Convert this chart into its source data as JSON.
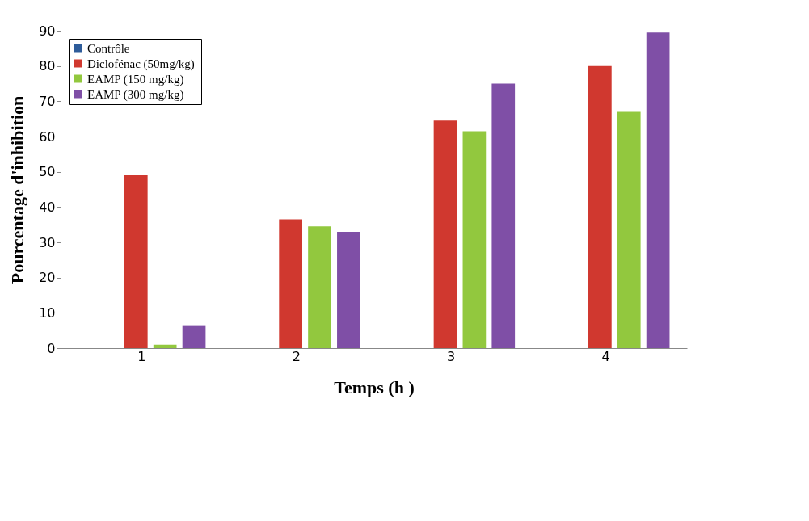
{
  "chart_data": {
    "type": "bar",
    "xlabel": "Temps (h )",
    "ylabel": "Pourcentage d'inhibition",
    "categories": [
      "1",
      "2",
      "3",
      "4"
    ],
    "series": [
      {
        "name": "Contrôle",
        "color": "#2e5c9a",
        "values": [
          0,
          0,
          0,
          0
        ]
      },
      {
        "name": "Diclofénac  (50mg/kg)",
        "color": "#d0382f",
        "values": [
          49,
          36.5,
          64.5,
          80
        ]
      },
      {
        "name": " EAMP (150 mg/kg)",
        "color": "#92c83e",
        "values": [
          1,
          34.5,
          61.5,
          67
        ]
      },
      {
        "name": "EAMP (300 mg/kg)",
        "color": "#7f4fa6",
        "values": [
          6.5,
          33,
          75,
          89.5
        ]
      }
    ],
    "ylim": [
      0,
      90
    ],
    "yticks": [
      0,
      10,
      20,
      30,
      40,
      50,
      60,
      70,
      80,
      90
    ],
    "grid": false,
    "legend": "top left"
  }
}
